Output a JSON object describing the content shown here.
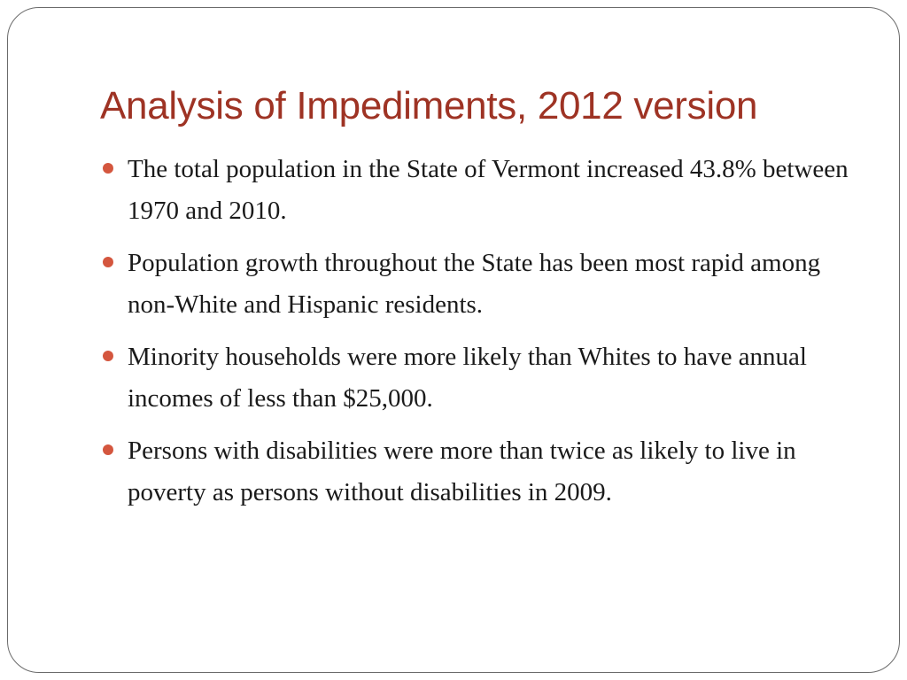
{
  "slide": {
    "title": "Analysis of Impediments, 2012 version",
    "colors": {
      "title": "#9e3324",
      "bullet": "#d4563e",
      "text": "#1a1a1a",
      "border": "#6b6b6b"
    },
    "bullets": [
      {
        "text": "The total population in the State of Vermont increased 43.8% between 1970 and 2010.",
        "icon": "bullet-dot-icon"
      },
      {
        "text": "Population growth throughout the State has been most rapid among non-White and Hispanic residents.",
        "icon": "bullet-dot-icon"
      },
      {
        "text": "Minority households were more likely than Whites to have annual incomes of less than $25,000.",
        "icon": "bullet-dot-icon"
      },
      {
        "text": "Persons with disabilities were more than twice as likely to live in poverty as persons without disabilities in 2009.",
        "icon": "bullet-dot-icon"
      }
    ]
  }
}
